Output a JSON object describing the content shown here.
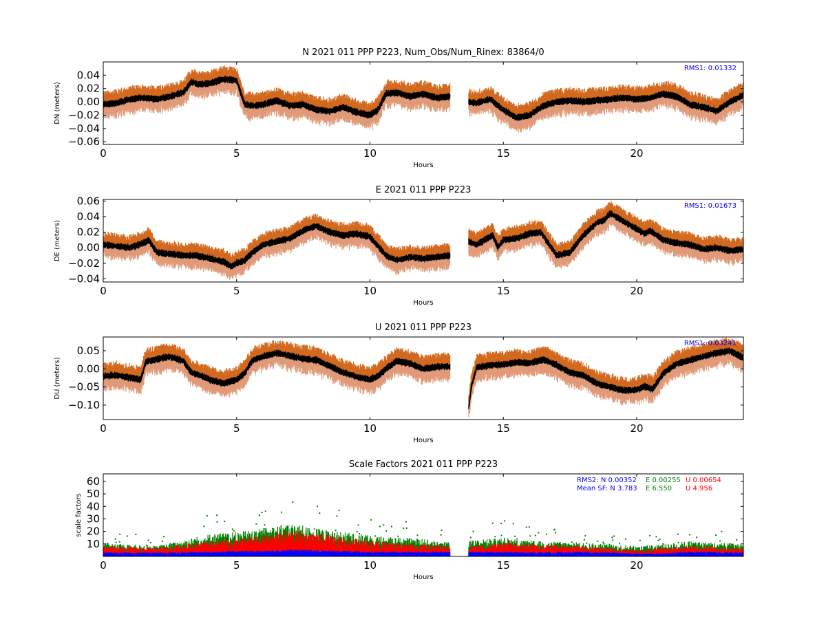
{
  "chart_data": [
    {
      "type": "scatter",
      "title": "N 2021 011 PPP  P223, Num_Obs/Num_Rinex: 83864/0",
      "xlabel": "Hours",
      "ylabel": "DN (meters)",
      "xlim": [
        0,
        24
      ],
      "ylim": [
        -0.064,
        0.06
      ],
      "xticks": [
        0,
        5,
        10,
        15,
        20
      ],
      "yticks": [
        -0.06,
        -0.04,
        -0.02,
        0.0,
        0.02,
        0.04
      ],
      "ytick_labels": [
        "−0.06",
        "−0.04",
        "−0.02",
        "0.00",
        "0.02",
        "0.04"
      ],
      "rms_text": "RMS1:  0.01332",
      "gap": [
        13.0,
        13.7
      ],
      "band_halfwidth": 0.016,
      "series": [
        {
          "role": "values",
          "color": "#000000",
          "x": [
            0,
            0.5,
            1,
            1.5,
            2,
            2.5,
            3,
            3.3,
            3.6,
            4,
            4.5,
            5,
            5.3,
            5.6,
            6,
            6.5,
            7,
            7.5,
            8,
            8.5,
            9,
            9.5,
            10,
            10.3,
            10.6,
            11,
            11.5,
            12,
            12.5,
            13,
            13.7,
            14,
            14.5,
            15,
            15.5,
            16,
            16.5,
            17,
            17.5,
            18,
            18.5,
            19,
            19.5,
            20,
            20.5,
            21,
            21.5,
            22,
            22.5,
            23,
            23.5,
            24
          ],
          "y": [
            -0.004,
            -0.002,
            0.004,
            0.006,
            0.004,
            0.008,
            0.014,
            0.03,
            0.026,
            0.028,
            0.034,
            0.032,
            -0.004,
            -0.006,
            -0.004,
            0.002,
            -0.006,
            -0.004,
            -0.012,
            -0.014,
            -0.008,
            -0.016,
            -0.02,
            -0.012,
            0.012,
            0.014,
            0.008,
            0.012,
            0.006,
            0.008,
            0.0,
            -0.002,
            0.004,
            -0.012,
            -0.024,
            -0.02,
            -0.006,
            0.0,
            0.002,
            0.0,
            0.002,
            0.004,
            0.006,
            0.004,
            0.006,
            0.012,
            0.008,
            -0.004,
            -0.008,
            -0.014,
            0.0,
            0.01
          ]
        },
        {
          "role": "upper band",
          "color": "#d2691e"
        },
        {
          "role": "lower band",
          "color": "#e09a78"
        }
      ]
    },
    {
      "type": "scatter",
      "title": "E 2021 011 PPP  P223",
      "xlabel": "Hours",
      "ylabel": "DE (meters)",
      "xlim": [
        0,
        24
      ],
      "ylim": [
        -0.044,
        0.062
      ],
      "xticks": [
        0,
        5,
        10,
        15,
        20
      ],
      "yticks": [
        -0.04,
        -0.02,
        0.0,
        0.02,
        0.04,
        0.06
      ],
      "ytick_labels": [
        "−0.04",
        "−0.02",
        "0.00",
        "0.02",
        "0.04",
        "0.06"
      ],
      "rms_text": "RMS1:  0.01673",
      "gap": [
        13.0,
        13.7
      ],
      "band_halfwidth": 0.013,
      "series": [
        {
          "role": "values",
          "color": "#000000",
          "x": [
            0,
            0.5,
            1,
            1.5,
            1.7,
            2,
            2.5,
            3,
            3.5,
            4,
            4.5,
            4.8,
            5,
            5.3,
            5.6,
            6,
            6.5,
            7,
            7.5,
            8,
            8.5,
            9,
            9.5,
            10,
            10.3,
            10.6,
            11,
            11.5,
            12,
            12.5,
            13,
            13.7,
            14,
            14.3,
            14.6,
            14.8,
            15,
            15.5,
            16,
            16.4,
            16.8,
            17,
            17.5,
            18,
            18.5,
            18.8,
            19,
            19.5,
            20,
            20.3,
            20.5,
            21,
            21.5,
            22,
            22.5,
            23,
            23.5,
            24
          ],
          "y": [
            0.004,
            0.002,
            0.0,
            0.006,
            0.01,
            -0.006,
            -0.008,
            -0.01,
            -0.01,
            -0.014,
            -0.018,
            -0.024,
            -0.02,
            -0.016,
            -0.006,
            0.004,
            0.008,
            0.012,
            0.022,
            0.028,
            0.02,
            0.016,
            0.018,
            0.014,
            0.002,
            -0.01,
            -0.016,
            -0.012,
            -0.014,
            -0.012,
            -0.01,
            0.008,
            0.004,
            0.01,
            0.016,
            0.0,
            0.01,
            0.012,
            0.018,
            0.02,
            0.0,
            -0.01,
            -0.006,
            0.016,
            0.032,
            0.036,
            0.044,
            0.034,
            0.024,
            0.018,
            0.022,
            0.01,
            0.006,
            0.004,
            -0.002,
            0.0,
            -0.004,
            -0.002
          ]
        },
        {
          "role": "upper band",
          "color": "#d2691e"
        },
        {
          "role": "lower band",
          "color": "#e09a78"
        }
      ]
    },
    {
      "type": "scatter",
      "title": "U 2021 011 PPP  P223",
      "xlabel": "Hours",
      "ylabel": "DU (meters)",
      "xlim": [
        0,
        24
      ],
      "ylim": [
        -0.14,
        0.088
      ],
      "xticks": [
        0,
        5,
        10,
        15,
        20
      ],
      "yticks": [
        -0.1,
        -0.05,
        0.0,
        0.05
      ],
      "ytick_labels": [
        "−0.10",
        "−0.05",
        "0.00",
        "0.05"
      ],
      "rms_text": "RMS1:  0.03241",
      "gap": [
        13.0,
        13.7
      ],
      "band_halfwidth": 0.03,
      "series": [
        {
          "role": "values",
          "color": "#000000",
          "x": [
            0,
            0.5,
            1,
            1.4,
            1.6,
            2,
            2.5,
            3,
            3.3,
            3.7,
            4,
            4.5,
            5,
            5.3,
            5.6,
            6,
            6.5,
            7,
            7.5,
            8,
            8.5,
            9,
            9.5,
            10,
            10.3,
            10.6,
            11,
            11.5,
            12,
            12.5,
            13,
            13.7,
            13.8,
            14,
            14.5,
            15,
            15.5,
            16,
            16.5,
            17,
            17.5,
            18,
            18.5,
            19,
            19.5,
            20,
            20.3,
            20.6,
            21,
            21.5,
            22,
            22.5,
            23,
            23.5,
            24
          ],
          "y": [
            -0.02,
            -0.018,
            -0.024,
            -0.03,
            0.02,
            0.026,
            0.034,
            0.022,
            -0.01,
            -0.02,
            -0.03,
            -0.04,
            -0.03,
            -0.012,
            0.024,
            0.034,
            0.044,
            0.036,
            0.028,
            0.024,
            0.008,
            -0.01,
            -0.022,
            -0.03,
            -0.02,
            0.0,
            0.022,
            0.014,
            0.0,
            0.006,
            0.006,
            -0.11,
            -0.05,
            0.004,
            0.01,
            0.012,
            0.018,
            0.016,
            0.026,
            0.01,
            -0.01,
            -0.018,
            -0.04,
            -0.05,
            -0.06,
            -0.058,
            -0.048,
            -0.056,
            -0.012,
            0.014,
            0.024,
            0.034,
            0.044,
            0.05,
            0.03
          ]
        },
        {
          "role": "upper band",
          "color": "#d2691e"
        },
        {
          "role": "lower band",
          "color": "#e09a78"
        }
      ]
    },
    {
      "type": "area",
      "title": "Scale Factors 2021 011 PPP  P223",
      "xlabel": "Hours",
      "ylabel": "scale factors",
      "xlim": [
        0,
        24
      ],
      "ylim": [
        0,
        66
      ],
      "xticks": [
        0,
        5,
        10,
        15,
        20
      ],
      "yticks": [
        10,
        20,
        30,
        40,
        50,
        60
      ],
      "ytick_labels": [
        "10",
        "20",
        "30",
        "40",
        "50",
        "60"
      ],
      "gap": [
        13.0,
        13.7
      ],
      "rms2_text": {
        "label": "RMS2: N  0.00352",
        "e": "E  0.00255",
        "u": "U  0.00654"
      },
      "meansf_text": {
        "label": "Mean SF: N   3.783",
        "e": "E   6.550",
        "u": "U   4.956"
      },
      "series": [
        {
          "name": "N",
          "color": "#0000ff",
          "x": [
            0,
            2,
            4,
            5,
            6,
            7,
            8,
            10,
            12,
            13,
            13.7,
            15,
            16,
            18,
            20,
            21,
            22,
            24
          ],
          "y": [
            2.5,
            2.5,
            3,
            3.5,
            3.5,
            4.5,
            4,
            3,
            3,
            3,
            3,
            3,
            2.5,
            3,
            2,
            2,
            3,
            2.5
          ]
        },
        {
          "name": "E",
          "color": "#008000",
          "x": [
            0,
            2,
            4,
            5,
            6,
            7,
            8,
            10,
            12,
            13,
            13.7,
            15,
            16,
            18,
            20,
            21,
            22,
            24
          ],
          "y": [
            8,
            6,
            13,
            14,
            16,
            19,
            16,
            12,
            10,
            8,
            9,
            11,
            9,
            8,
            6,
            7,
            9,
            7
          ]
        },
        {
          "name": "U",
          "color": "#ff0000",
          "x": [
            0,
            2,
            4,
            5,
            6,
            7,
            8,
            10,
            12,
            13,
            13.7,
            15,
            16,
            18,
            20,
            21,
            22,
            24
          ],
          "y": [
            6,
            5,
            9,
            10,
            12,
            15,
            13,
            9,
            7,
            6,
            6,
            8,
            7,
            6,
            4,
            5,
            6,
            5
          ]
        }
      ]
    }
  ]
}
